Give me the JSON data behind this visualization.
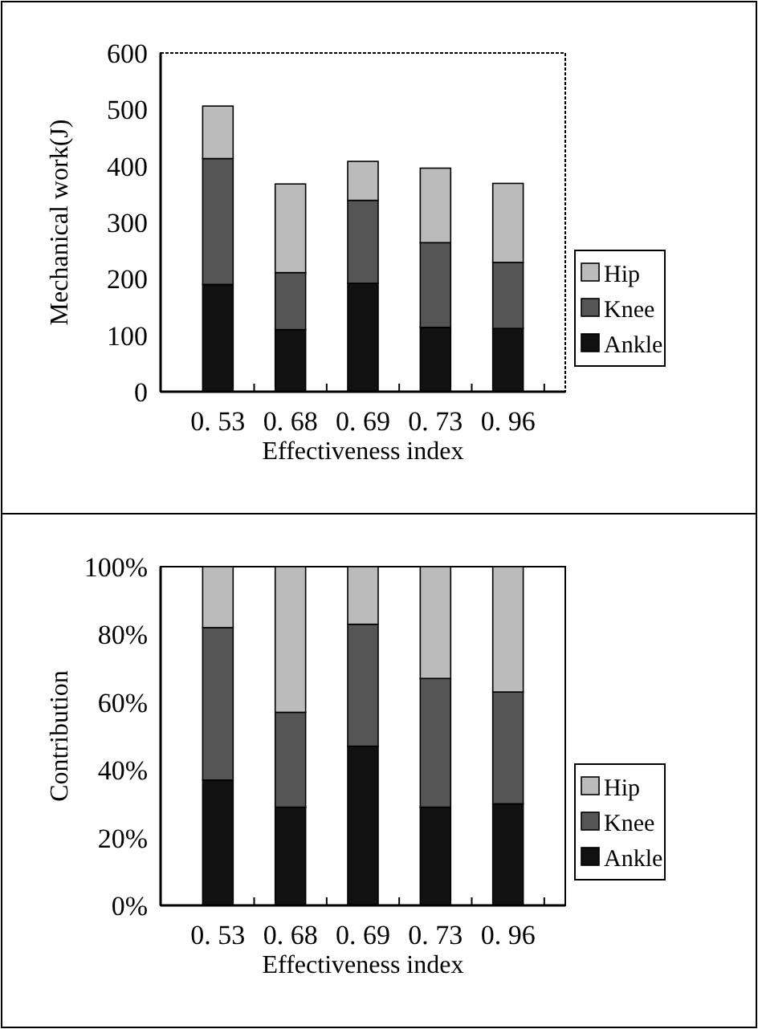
{
  "chart_data": [
    {
      "type": "bar",
      "stacked": true,
      "xlabel": "Effectiveness index",
      "ylabel": "Mechanical work(J)",
      "categories": [
        "0. 53",
        "0. 68",
        "0. 69",
        "0. 73",
        "0. 96"
      ],
      "ylim": [
        0,
        600
      ],
      "yticks": [
        0,
        100,
        200,
        300,
        400,
        500,
        600
      ],
      "legend": "right",
      "grid": false,
      "series": [
        {
          "name": "Ankle",
          "color": "#111111",
          "values": [
            190,
            110,
            192,
            114,
            112
          ]
        },
        {
          "name": "Knee",
          "color": "#555555",
          "values": [
            223,
            101,
            147,
            150,
            117
          ]
        },
        {
          "name": "Hip",
          "color": "#bbbbbb",
          "values": [
            93,
            157,
            69,
            132,
            140
          ]
        }
      ]
    },
    {
      "type": "bar",
      "stacked": true,
      "xlabel": "Effectiveness index",
      "ylabel": "Contribution",
      "categories": [
        "0. 53",
        "0. 68",
        "0. 69",
        "0. 73",
        "0. 96"
      ],
      "ylim": [
        0,
        100
      ],
      "yticks": [
        {
          "value": 0,
          "label": "0%"
        },
        {
          "value": 20,
          "label": "20%"
        },
        {
          "value": 40,
          "label": "40%"
        },
        {
          "value": 60,
          "label": "60%"
        },
        {
          "value": 80,
          "label": "80%"
        },
        {
          "value": 100,
          "label": "100%"
        }
      ],
      "legend": "right",
      "grid": false,
      "series": [
        {
          "name": "Ankle",
          "color": "#111111",
          "values": [
            37,
            29,
            47,
            29,
            30
          ]
        },
        {
          "name": "Knee",
          "color": "#555555",
          "values": [
            45,
            28,
            36,
            38,
            33
          ]
        },
        {
          "name": "Hip",
          "color": "#bbbbbb",
          "values": [
            18,
            43,
            17,
            33,
            37
          ]
        }
      ]
    }
  ]
}
